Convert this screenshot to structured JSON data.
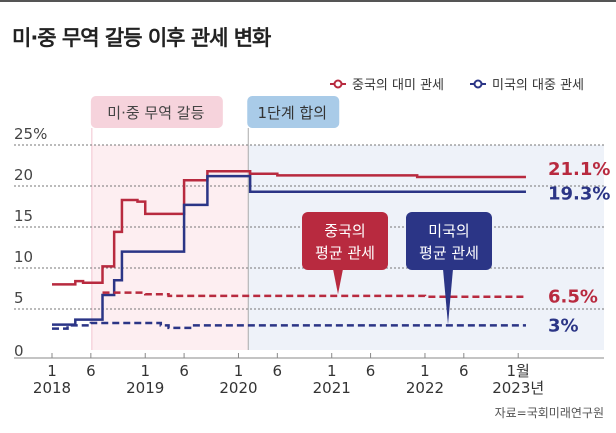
{
  "title": "미·중 무역 갈등 이후 관세 변화",
  "source": "자료=국회미래연구원",
  "colors": {
    "china": "#b82a3f",
    "us": "#2b3586",
    "pink_bg": "#fdeef1",
    "blue_bg": "#eef2f9",
    "pink_tag": "#f6d3dc",
    "blue_tag": "#a9cbe8"
  },
  "chart_data": {
    "type": "line",
    "title": "미·중 무역 갈등 이후 관세 변화",
    "ylabel": "%",
    "ylim": [
      0,
      25
    ],
    "yticks": [
      {
        "v": 0,
        "label": "0"
      },
      {
        "v": 5,
        "label": "5"
      },
      {
        "v": 10,
        "label": "10"
      },
      {
        "v": 15,
        "label": "15"
      },
      {
        "v": 20,
        "label": "20"
      },
      {
        "v": 25,
        "label": "25%"
      }
    ],
    "x_unit": "months since Jan 2018",
    "xlim": [
      0,
      63
    ],
    "xticks": [
      {
        "m": 0,
        "label": "1",
        "year": "2018"
      },
      {
        "m": 5,
        "label": "6"
      },
      {
        "m": 12,
        "label": "1",
        "year": "2019"
      },
      {
        "m": 17,
        "label": "6"
      },
      {
        "m": 24,
        "label": "1",
        "year": "2020"
      },
      {
        "m": 29,
        "label": "6"
      },
      {
        "m": 36,
        "label": "1",
        "year": "2021"
      },
      {
        "m": 41,
        "label": "6"
      },
      {
        "m": 48,
        "label": "1",
        "year": "2022"
      },
      {
        "m": 53,
        "label": "6"
      },
      {
        "m": 60,
        "label": "1월",
        "year": "2023년"
      }
    ],
    "legend": [
      {
        "name": "중국의 대미 관세",
        "color": "#b82a3f"
      },
      {
        "name": "미국의 대중 관세",
        "color": "#2b3586"
      }
    ],
    "legend_position": "top-right",
    "periods": [
      {
        "label": "미·중 무역 갈등",
        "start": 5,
        "end": 25
      },
      {
        "label": "1단계 합의",
        "start": 25,
        "end": 63
      }
    ],
    "series": [
      {
        "name": "중국의 대미 관세",
        "style": "solid",
        "color": "#b82a3f",
        "end_label": "21.1%",
        "points": [
          [
            0,
            8.0
          ],
          [
            3,
            8.4
          ],
          [
            4,
            8.2
          ],
          [
            6.5,
            10.2
          ],
          [
            8,
            14.4
          ],
          [
            9,
            18.3
          ],
          [
            11,
            18.1
          ],
          [
            12,
            16.6
          ],
          [
            17,
            20.7
          ],
          [
            20,
            21.8
          ],
          [
            25.5,
            21.5
          ],
          [
            29,
            21.3
          ],
          [
            47,
            21.1
          ],
          [
            61,
            21.1
          ]
        ]
      },
      {
        "name": "미국의 대중 관세",
        "style": "solid",
        "color": "#2b3586",
        "end_label": "19.3%",
        "points": [
          [
            0,
            3.1
          ],
          [
            3,
            3.7
          ],
          [
            6.5,
            6.7
          ],
          [
            8,
            8.5
          ],
          [
            9,
            12.0
          ],
          [
            17,
            17.7
          ],
          [
            20,
            21.2
          ],
          [
            25.5,
            19.3
          ],
          [
            61,
            19.3
          ]
        ]
      },
      {
        "name": "중국의 평균 관세",
        "style": "dashed",
        "color": "#b82a3f",
        "end_label": "6.5%",
        "callout": "중국의\n평균 관세",
        "points": [
          [
            6.5,
            7.0
          ],
          [
            12,
            6.8
          ],
          [
            15,
            6.6
          ],
          [
            48,
            6.5
          ],
          [
            56,
            6.5
          ],
          [
            61,
            6.5
          ]
        ]
      },
      {
        "name": "미국의 평균 관세",
        "style": "dashed",
        "color": "#2b3586",
        "end_label": "3%",
        "callout": "미국의\n평균 관세",
        "points": [
          [
            0,
            2.6
          ],
          [
            2,
            3.0
          ],
          [
            5,
            3.3
          ],
          [
            14,
            3.0
          ],
          [
            15,
            2.7
          ],
          [
            18,
            3.0
          ],
          [
            61,
            3.0
          ]
        ]
      }
    ]
  }
}
